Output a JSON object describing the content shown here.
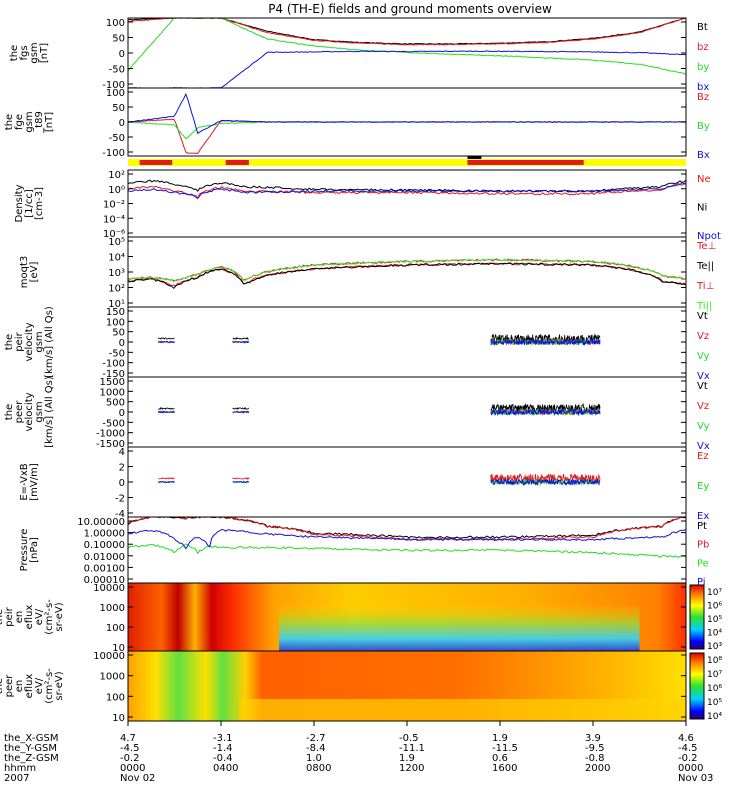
{
  "title": "P4 (TH-E) fields and ground moments overview",
  "colors": {
    "black": "#000000",
    "red": "#e31a1c",
    "green": "#22dd22",
    "blue": "#1010e0",
    "yellow": "#ffff00",
    "lgreen": "#33ee33"
  },
  "panels": [
    {
      "id": "fgs",
      "ylabel": [
        "the",
        "fgs",
        "gsm",
        "[nT]"
      ],
      "ticks": [
        "100",
        "50",
        "0",
        "-50",
        "-100"
      ],
      "legend": [
        {
          "text": "Bt",
          "color": "black"
        },
        {
          "text": "bz",
          "color": "red"
        },
        {
          "text": "by",
          "color": "green"
        },
        {
          "text": "bx",
          "color": "blue"
        }
      ]
    },
    {
      "id": "fge",
      "ylabel": [
        "the",
        "fge",
        "gsm",
        "_t89",
        "[nT]"
      ],
      "ticks": [
        "100",
        "50",
        "0",
        "-50",
        "-100"
      ],
      "legend": [
        {
          "text": "Bz",
          "color": "red"
        },
        {
          "text": "By",
          "color": "green"
        },
        {
          "text": "Bx",
          "color": "blue"
        }
      ]
    },
    {
      "id": "density",
      "ylabel": [
        "Density",
        "[1/cc]",
        "[cm-3]"
      ],
      "ticks": [
        "10²",
        "10⁰",
        "10⁻²",
        "10⁻⁴",
        "10⁻⁶"
      ],
      "legend": [
        {
          "text": "Ne",
          "color": "red"
        },
        {
          "text": "Ni",
          "color": "black"
        },
        {
          "text": "Npot",
          "color": "blue"
        }
      ]
    },
    {
      "id": "temp",
      "ylabel": [
        "moqt3",
        "[eV]"
      ],
      "ticks": [
        "10⁵",
        "10⁴",
        "10³",
        "10²",
        "10¹"
      ],
      "legend": [
        {
          "text": "Te⊥",
          "color": "red"
        },
        {
          "text": "Te||",
          "color": "black"
        },
        {
          "text": "Ti⊥",
          "color": "red"
        },
        {
          "text": "Ti||",
          "color": "lgreen"
        }
      ]
    },
    {
      "id": "peir_vel",
      "ylabel": [
        "the",
        "peir",
        "velocity",
        "gsm",
        "[km/s] (All Qs)"
      ],
      "ticks": [
        "150",
        "100",
        "50",
        "0",
        "-50",
        "-100",
        "-150"
      ],
      "legend": [
        {
          "text": "Vt",
          "color": "black"
        },
        {
          "text": "Vz",
          "color": "red"
        },
        {
          "text": "Vy",
          "color": "green"
        },
        {
          "text": "Vx",
          "color": "blue"
        }
      ]
    },
    {
      "id": "peer_vel",
      "ylabel": [
        "the",
        "peer",
        "velocity",
        "gsm",
        "[km/s] (All Qs)"
      ],
      "ticks": [
        "1500",
        "1000",
        "500",
        "0",
        "-500",
        "-1000",
        "-1500"
      ],
      "legend": [
        {
          "text": "Vt",
          "color": "black"
        },
        {
          "text": "Vz",
          "color": "red"
        },
        {
          "text": "Vy",
          "color": "green"
        },
        {
          "text": "Vx",
          "color": "blue"
        }
      ]
    },
    {
      "id": "efield",
      "ylabel": [
        "E=-VxB",
        "[mV/m]"
      ],
      "ticks": [
        "4",
        "2",
        "0",
        "-2",
        "-4"
      ],
      "legend": [
        {
          "text": "Ez",
          "color": "red"
        },
        {
          "text": "Ey",
          "color": "green"
        },
        {
          "text": "Ex",
          "color": "blue"
        }
      ]
    },
    {
      "id": "pressure",
      "ylabel": [
        "Pressure",
        "[nPa]"
      ],
      "ticks": [
        "10.00000",
        "1.00000",
        "0.10000",
        "0.01000",
        "0.00100",
        "0.00010"
      ],
      "legend": [
        {
          "text": "Pt",
          "color": "black"
        },
        {
          "text": "Pb",
          "color": "red"
        },
        {
          "text": "Pe",
          "color": "green"
        },
        {
          "text": "Pi",
          "color": "blue"
        }
      ]
    },
    {
      "id": "peir_spec",
      "ylabel": [
        "the",
        "peir",
        "en",
        "eflux",
        "eV/",
        "(cm²-s-",
        "sr-eV)"
      ],
      "ticks": [
        "10000",
        "1000",
        "100",
        "10"
      ],
      "cbar": [
        "10⁷",
        "10⁶",
        "10⁵",
        "10⁴",
        "10³"
      ]
    },
    {
      "id": "peer_spec",
      "ylabel": [
        "the",
        "peer",
        "en",
        "eflux",
        "eV/",
        "(cm²-s-",
        "sr-eV)"
      ],
      "ticks": [
        "10000",
        "1000",
        "100",
        "10"
      ],
      "cbar": [
        "10⁸",
        "10⁷",
        "10⁶",
        "10⁵",
        "10⁴"
      ]
    }
  ],
  "xaxis": {
    "row_labels": [
      "the_X-GSM",
      "the_Y-GSM",
      "the_Z-GSM",
      "hhmm",
      "2007"
    ],
    "columns": [
      [
        "4.7",
        "-4.5",
        "-0.2",
        "0000",
        "Nov 02"
      ],
      [
        "-3.1",
        "-1.4",
        "-0.4",
        "0400",
        ""
      ],
      [
        "-2.7",
        "-8.4",
        "1.0",
        "0800",
        ""
      ],
      [
        "-0.5",
        "-11.1",
        "1.9",
        "1200",
        ""
      ],
      [
        "1.9",
        "-11.5",
        "0.6",
        "1600",
        ""
      ],
      [
        "3.9",
        "-9.5",
        "-0.8",
        "2000",
        ""
      ],
      [
        "4.6",
        "-4.5",
        "-0.2",
        "0000",
        "Nov 03"
      ]
    ]
  },
  "chart_data": [
    {
      "type": "line",
      "title": "P4 (TH-E) fields and ground moments overview",
      "ylabel": "the fgs gsm [nT]",
      "ylim": [
        -100,
        100
      ],
      "x_hours": [
        0,
        2,
        4,
        6,
        8,
        10,
        12,
        14,
        16,
        18,
        20,
        22,
        24
      ],
      "series": [
        {
          "name": "Bt",
          "values": [
            95,
            100,
            100,
            62,
            38,
            30,
            26,
            26,
            28,
            32,
            42,
            60,
            100
          ]
        },
        {
          "name": "bz",
          "values": [
            90,
            100,
            100,
            58,
            36,
            28,
            24,
            24,
            26,
            30,
            40,
            58,
            100
          ]
        },
        {
          "name": "by",
          "values": [
            -50,
            100,
            100,
            40,
            20,
            8,
            2,
            -4,
            -8,
            -14,
            -20,
            -32,
            -60
          ]
        },
        {
          "name": "bx",
          "values": [
            -100,
            -100,
            -100,
            2,
            3,
            5,
            4,
            5,
            5,
            4,
            3,
            1,
            -5
          ]
        }
      ]
    },
    {
      "type": "line",
      "ylabel": "the fge gsm_t89 [nT]",
      "ylim": [
        -120,
        120
      ],
      "x_hours": [
        0,
        2,
        2.5,
        3,
        4,
        6,
        8,
        12,
        16,
        20,
        24
      ],
      "series": [
        {
          "name": "Bz",
          "values": [
            0,
            10,
            -110,
            -110,
            5,
            0,
            0,
            0,
            0,
            0,
            0
          ]
        },
        {
          "name": "By",
          "values": [
            0,
            -10,
            -60,
            -20,
            -5,
            0,
            0,
            0,
            0,
            0,
            0
          ]
        },
        {
          "name": "Bx",
          "values": [
            0,
            20,
            100,
            -40,
            5,
            0,
            0,
            0,
            0,
            0,
            0
          ]
        }
      ]
    },
    {
      "type": "line",
      "ylabel": "Density [1/cc] [cm-3]",
      "yscale": "log",
      "ylim": [
        1e-06,
        100.0
      ],
      "x_hours": [
        0,
        1,
        2,
        3,
        4,
        5,
        8,
        12,
        16,
        20,
        23,
        24
      ],
      "series": [
        {
          "name": "Ne",
          "values": [
            0.5,
            1,
            0.3,
            0.05,
            0.8,
            0.3,
            0.2,
            0.2,
            0.15,
            0.15,
            0.4,
            2
          ]
        },
        {
          "name": "Ni",
          "values": [
            2,
            5,
            2,
            0.3,
            3,
            1,
            0.5,
            0.4,
            0.3,
            0.3,
            1,
            5
          ]
        },
        {
          "name": "Npot",
          "values": [
            0.3,
            0.5,
            0.2,
            0.05,
            0.5,
            0.2,
            0.3,
            0.3,
            0.3,
            0.3,
            0.5,
            3
          ]
        }
      ]
    },
    {
      "type": "line",
      "ylabel": "moqt3 [eV]",
      "yscale": "log",
      "ylim": [
        10,
        100000.0
      ],
      "x_hours": [
        0,
        1,
        2,
        3,
        4,
        5,
        8,
        12,
        16,
        20,
        23,
        24
      ],
      "series": [
        {
          "name": "Te⊥",
          "values": [
            300,
            400,
            150,
            500,
            1500,
            200,
            1500,
            2500,
            3000,
            2500,
            300,
            200
          ]
        },
        {
          "name": "Te||",
          "values": [
            300,
            400,
            120,
            500,
            1500,
            180,
            1500,
            2500,
            3000,
            2500,
            280,
            200
          ]
        },
        {
          "name": "Ti⊥",
          "values": [
            400,
            500,
            300,
            700,
            2000,
            300,
            2500,
            4000,
            5000,
            4000,
            600,
            400
          ]
        },
        {
          "name": "Ti||",
          "values": [
            400,
            500,
            300,
            700,
            2000,
            300,
            2500,
            4000,
            5000,
            4000,
            600,
            400
          ]
        }
      ]
    },
    {
      "type": "line",
      "ylabel": "the peir velocity gsm [km/s] (All Qs)",
      "ylim": [
        -150,
        150
      ],
      "intervals_hours": [
        [
          1.3,
          2.0
        ],
        [
          4.5,
          5.2
        ],
        [
          15.6,
          20.3
        ]
      ],
      "series": [
        {
          "name": "Vt"
        },
        {
          "name": "Vz"
        },
        {
          "name": "Vy"
        },
        {
          "name": "Vx"
        }
      ]
    },
    {
      "type": "line",
      "ylabel": "the peer velocity gsm [km/s] (All Qs)",
      "ylim": [
        -1500,
        1500
      ],
      "intervals_hours": [
        [
          1.3,
          2.0
        ],
        [
          4.5,
          5.2
        ],
        [
          15.6,
          20.3
        ]
      ],
      "series": [
        {
          "name": "Vt"
        },
        {
          "name": "Vz"
        },
        {
          "name": "Vy"
        },
        {
          "name": "Vx"
        }
      ]
    },
    {
      "type": "line",
      "ylabel": "E=-VxB [mV/m]",
      "ylim": [
        -4,
        4
      ],
      "intervals_hours": [
        [
          1.3,
          2.0
        ],
        [
          4.5,
          5.2
        ],
        [
          15.6,
          20.3
        ]
      ],
      "series": [
        {
          "name": "Ez"
        },
        {
          "name": "Ey"
        },
        {
          "name": "Ex"
        }
      ]
    },
    {
      "type": "line",
      "ylabel": "Pressure [nPa]",
      "yscale": "log",
      "ylim": [
        0.0001,
        10
      ],
      "x_hours": [
        0,
        1,
        2,
        2.5,
        3,
        3.5,
        4,
        6,
        8,
        12,
        16,
        20,
        23,
        24
      ],
      "series": [
        {
          "name": "Pt",
          "values": [
            3,
            10,
            10,
            8,
            10,
            10,
            10,
            2,
            0.6,
            0.3,
            0.3,
            0.4,
            2,
            10
          ]
        },
        {
          "name": "Pb",
          "values": [
            3,
            10,
            10,
            8,
            10,
            10,
            10,
            2,
            0.5,
            0.2,
            0.2,
            0.3,
            2,
            10
          ]
        },
        {
          "name": "Pe",
          "values": [
            0.05,
            0.08,
            0.02,
            0.08,
            0.02,
            0.06,
            0.05,
            0.05,
            0.04,
            0.03,
            0.03,
            0.02,
            0.01,
            0.01
          ]
        },
        {
          "name": "Pi",
          "values": [
            0.5,
            1,
            0.2,
            0.03,
            0.3,
            0.03,
            1,
            0.5,
            0.3,
            0.2,
            0.2,
            0.2,
            0.3,
            1
          ]
        }
      ]
    },
    {
      "type": "heatmap",
      "ylabel": "the peir en eflux",
      "yscale": "log",
      "ylim": [
        10,
        20000
      ],
      "zlim": [
        1000.0,
        10000000.0
      ]
    },
    {
      "type": "heatmap",
      "ylabel": "the peer en eflux",
      "yscale": "log",
      "ylim": [
        10,
        20000
      ],
      "zlim": [
        10000.0,
        100000000.0
      ]
    }
  ]
}
